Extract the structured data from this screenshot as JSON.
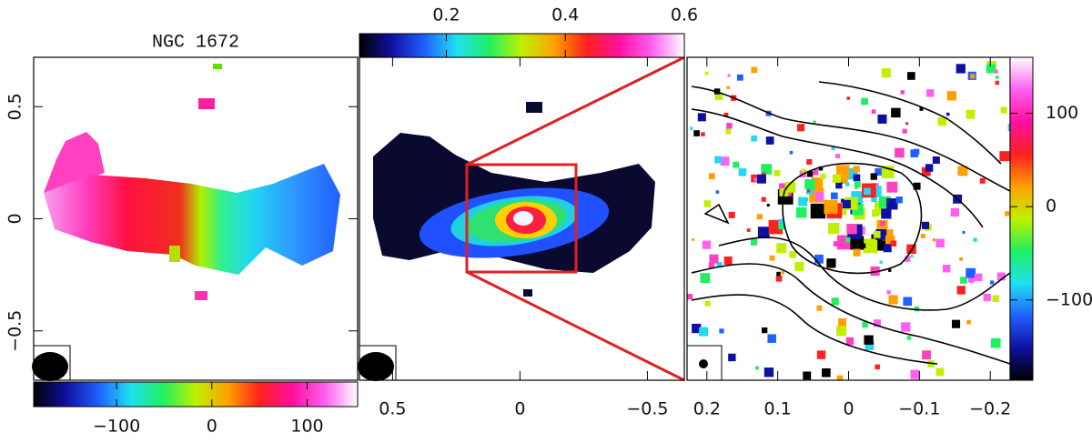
{
  "chart_data": [
    {
      "type": "image",
      "title": "NGC 1672",
      "ylim": [
        -0.72,
        0.72
      ],
      "yticks": [
        0.5,
        0,
        {
          "value": -0.5,
          "label": "−0.5"
        }
      ],
      "clim": [
        -187,
        153
      ],
      "cticks": [
        {
          "value": -100,
          "label": "−100"
        },
        0,
        100
      ],
      "colormap": [
        "#000000",
        "#1010a0",
        "#2060ff",
        "#20e0f0",
        "#20f060",
        "#c0f000",
        "#ffa000",
        "#ff2020",
        "#ff10a0",
        "#ff60f0",
        "#ffffff"
      ]
    },
    {
      "type": "image",
      "xlim": [
        0.63,
        -0.645
      ],
      "xticks": [
        0.5,
        0,
        {
          "value": -0.5,
          "label": "−0.5"
        }
      ],
      "clim": [
        0.054,
        0.6
      ],
      "cticks": [
        0.2,
        0.4,
        0.6
      ],
      "colormap": [
        "#000000",
        "#1010a0",
        "#2060ff",
        "#20e0f0",
        "#20f060",
        "#c0f000",
        "#ffa000",
        "#ff2020",
        "#ff10a0",
        "#ff60f0",
        "#ffffff"
      ]
    },
    {
      "type": "image",
      "xlim": [
        0.228,
        -0.228
      ],
      "xticks": [
        0.2,
        0.1,
        0,
        {
          "value": -0.1,
          "label": "−0.1"
        },
        {
          "value": -0.2,
          "label": "−0.2"
        }
      ],
      "clim": [
        -186,
        160
      ],
      "cticks": [
        100,
        0,
        {
          "value": -100,
          "label": "−100"
        }
      ],
      "colormap": [
        "#000000",
        "#1010a0",
        "#2060ff",
        "#20e0f0",
        "#20f060",
        "#c0f000",
        "#ffa000",
        "#ff2020",
        "#ff10a0",
        "#ff60f0",
        "#ffffff"
      ]
    }
  ]
}
